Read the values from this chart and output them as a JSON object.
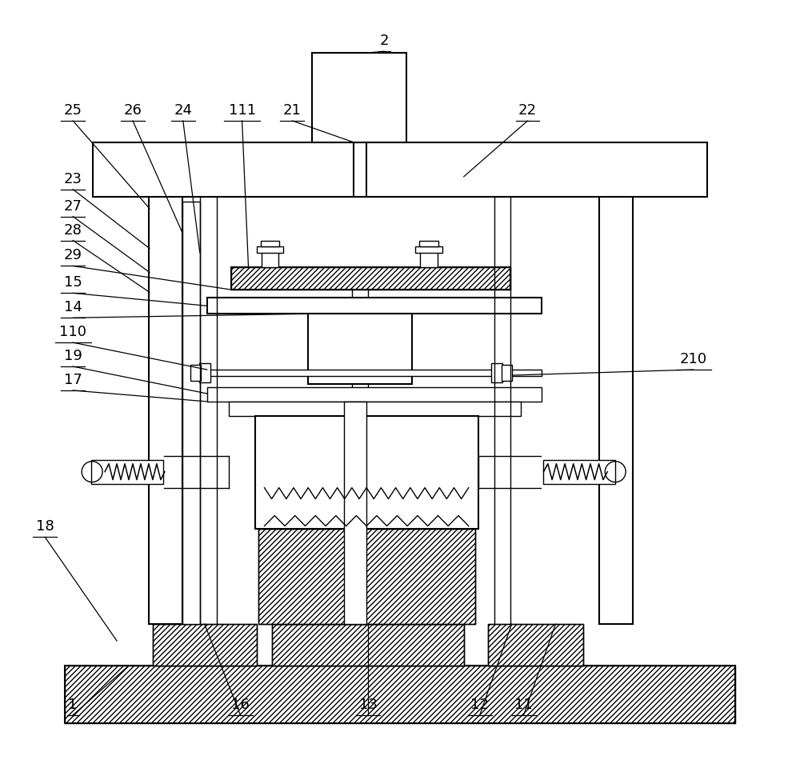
{
  "bg_color": "#ffffff",
  "line_color": "#000000",
  "fig_width": 10.0,
  "fig_height": 9.6
}
